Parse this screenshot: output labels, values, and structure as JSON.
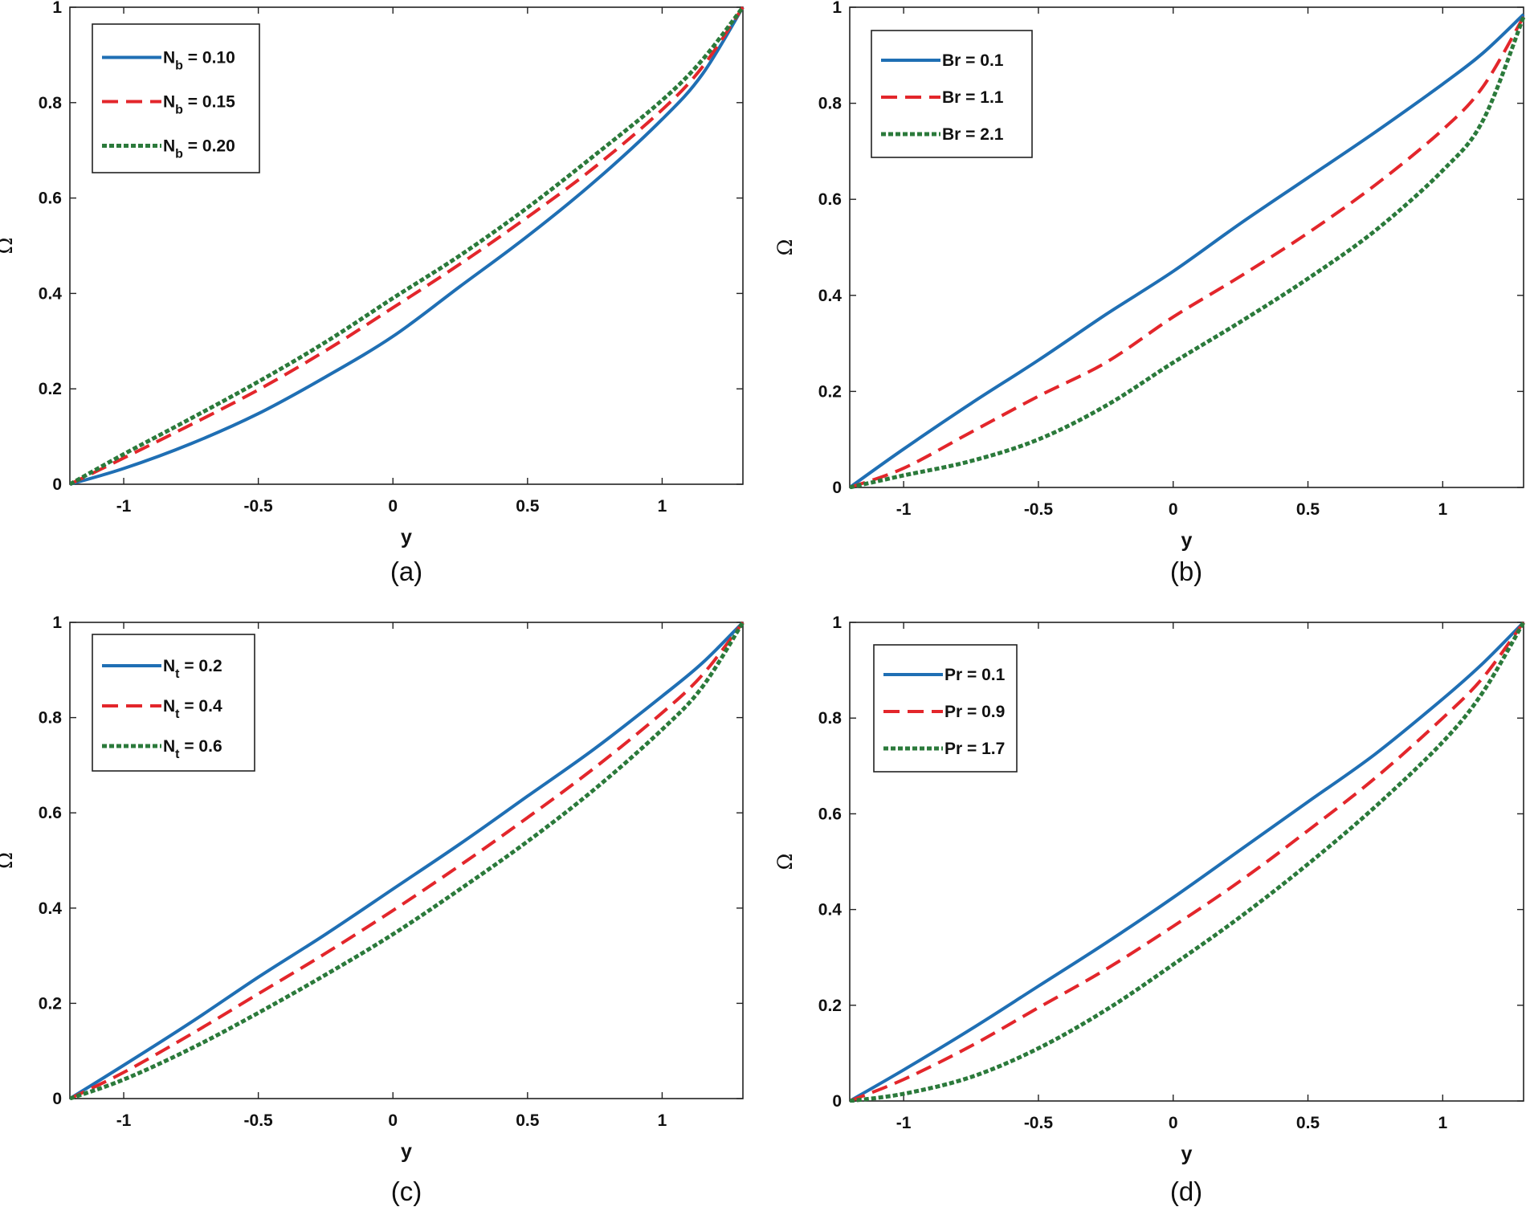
{
  "chart_data": [
    {
      "type": "line",
      "caption": "(a)",
      "xlabel": "y",
      "ylabel": "Ω",
      "xlim": [
        -1.2,
        1.3
      ],
      "ylim": [
        0,
        1
      ],
      "xticks": [
        "-1",
        "-0.5",
        "0",
        "0.5",
        "1"
      ],
      "yticks": [
        "0",
        "0.2",
        "0.4",
        "0.6",
        "0.8",
        "1"
      ],
      "legend_position": "top-left",
      "x": [
        -1.2,
        -1.0,
        -0.75,
        -0.5,
        -0.25,
        0.0,
        0.25,
        0.5,
        0.75,
        1.0,
        1.15,
        1.3
      ],
      "series": [
        {
          "name": "N",
          "sub": "b",
          "value": " = 0.10",
          "color": "#1f6fb4",
          "style": "solid",
          "values": [
            0.0,
            0.033,
            0.085,
            0.148,
            0.225,
            0.31,
            0.415,
            0.52,
            0.635,
            0.765,
            0.86,
            1.0
          ]
        },
        {
          "name": "N",
          "sub": "b",
          "value": " = 0.15",
          "color": "#e3262b",
          "style": "dashed",
          "values": [
            0.0,
            0.055,
            0.125,
            0.198,
            0.28,
            0.37,
            0.462,
            0.56,
            0.665,
            0.785,
            0.875,
            1.0
          ]
        },
        {
          "name": "N",
          "sub": "b",
          "value": " = 0.20",
          "color": "#2b7a3b",
          "style": "dotted",
          "values": [
            0.0,
            0.063,
            0.138,
            0.215,
            0.298,
            0.39,
            0.48,
            0.58,
            0.69,
            0.805,
            0.89,
            1.0
          ]
        }
      ]
    },
    {
      "type": "line",
      "caption": "(b)",
      "xlabel": "y",
      "ylabel": "Ω",
      "xlim": [
        -1.2,
        1.3
      ],
      "ylim": [
        0,
        1
      ],
      "xticks": [
        "-1",
        "-0.5",
        "0",
        "0.5",
        "1"
      ],
      "yticks": [
        "0",
        "0.2",
        "0.4",
        "0.6",
        "0.8",
        "1"
      ],
      "legend_position": "top-left",
      "x": [
        -1.2,
        -1.0,
        -0.75,
        -0.5,
        -0.25,
        0.0,
        0.25,
        0.5,
        0.75,
        1.0,
        1.15,
        1.3
      ],
      "series": [
        {
          "name": "Br = 0.1",
          "sub": "",
          "value": "",
          "color": "#1f6fb4",
          "style": "solid",
          "values": [
            0.0,
            0.08,
            0.175,
            0.265,
            0.36,
            0.45,
            0.55,
            0.645,
            0.74,
            0.84,
            0.905,
            0.985
          ]
        },
        {
          "name": "Br = 1.1",
          "sub": "",
          "value": "",
          "color": "#e3262b",
          "style": "dashed",
          "values": [
            0.0,
            0.04,
            0.115,
            0.19,
            0.26,
            0.355,
            0.44,
            0.53,
            0.63,
            0.745,
            0.835,
            0.98
          ]
        },
        {
          "name": "Br = 2.1",
          "sub": "",
          "value": "",
          "color": "#2b7a3b",
          "style": "dotted",
          "values": [
            0.0,
            0.025,
            0.055,
            0.1,
            0.17,
            0.26,
            0.345,
            0.435,
            0.535,
            0.66,
            0.765,
            0.98
          ]
        }
      ]
    },
    {
      "type": "line",
      "caption": "(c)",
      "xlabel": "y",
      "ylabel": "Ω",
      "xlim": [
        -1.2,
        1.3
      ],
      "ylim": [
        0,
        1
      ],
      "xticks": [
        "-1",
        "-0.5",
        "0",
        "0.5",
        "1"
      ],
      "yticks": [
        "0",
        "0.2",
        "0.4",
        "0.6",
        "0.8",
        "1"
      ],
      "legend_position": "top-left",
      "x": [
        -1.2,
        -1.0,
        -0.75,
        -0.5,
        -0.25,
        0.0,
        0.25,
        0.5,
        0.75,
        1.0,
        1.15,
        1.3
      ],
      "series": [
        {
          "name": "N",
          "sub": "t",
          "value": " = 0.2",
          "color": "#1f6fb4",
          "style": "solid",
          "values": [
            0.0,
            0.07,
            0.16,
            0.255,
            0.345,
            0.44,
            0.535,
            0.635,
            0.735,
            0.845,
            0.915,
            1.0
          ]
        },
        {
          "name": "N",
          "sub": "t",
          "value": " = 0.4",
          "color": "#e3262b",
          "style": "dashed",
          "values": [
            0.0,
            0.055,
            0.135,
            0.22,
            0.305,
            0.395,
            0.49,
            0.59,
            0.695,
            0.81,
            0.89,
            1.0
          ]
        },
        {
          "name": "N",
          "sub": "t",
          "value": " = 0.6",
          "color": "#2b7a3b",
          "style": "dotted",
          "values": [
            0.0,
            0.04,
            0.105,
            0.18,
            0.26,
            0.345,
            0.44,
            0.54,
            0.65,
            0.775,
            0.865,
            1.0
          ]
        }
      ]
    },
    {
      "type": "line",
      "caption": "(d)",
      "xlabel": "y",
      "ylabel": "Ω",
      "xlim": [
        -1.2,
        1.3
      ],
      "ylim": [
        0,
        1
      ],
      "xticks": [
        "-1",
        "-0.5",
        "0",
        "0.5",
        "1"
      ],
      "yticks": [
        "0",
        "0.2",
        "0.4",
        "0.6",
        "0.8",
        "1"
      ],
      "legend_position": "top-left",
      "x": [
        -1.2,
        -1.0,
        -0.75,
        -0.5,
        -0.25,
        0.0,
        0.25,
        0.5,
        0.75,
        1.0,
        1.15,
        1.3
      ],
      "series": [
        {
          "name": "Pr = 0.1",
          "sub": "",
          "value": "",
          "color": "#1f6fb4",
          "style": "solid",
          "values": [
            0.0,
            0.065,
            0.15,
            0.24,
            0.33,
            0.425,
            0.525,
            0.625,
            0.725,
            0.84,
            0.915,
            1.0
          ]
        },
        {
          "name": "Pr = 0.9",
          "sub": "",
          "value": "",
          "color": "#e3262b",
          "style": "dashed",
          "values": [
            0.0,
            0.045,
            0.115,
            0.195,
            0.275,
            0.365,
            0.46,
            0.565,
            0.675,
            0.8,
            0.885,
            1.0
          ]
        },
        {
          "name": "Pr = 1.7",
          "sub": "",
          "value": "",
          "color": "#2b7a3b",
          "style": "dotted",
          "values": [
            0.0,
            0.015,
            0.05,
            0.11,
            0.19,
            0.285,
            0.385,
            0.495,
            0.615,
            0.75,
            0.855,
            1.0
          ]
        }
      ]
    }
  ]
}
